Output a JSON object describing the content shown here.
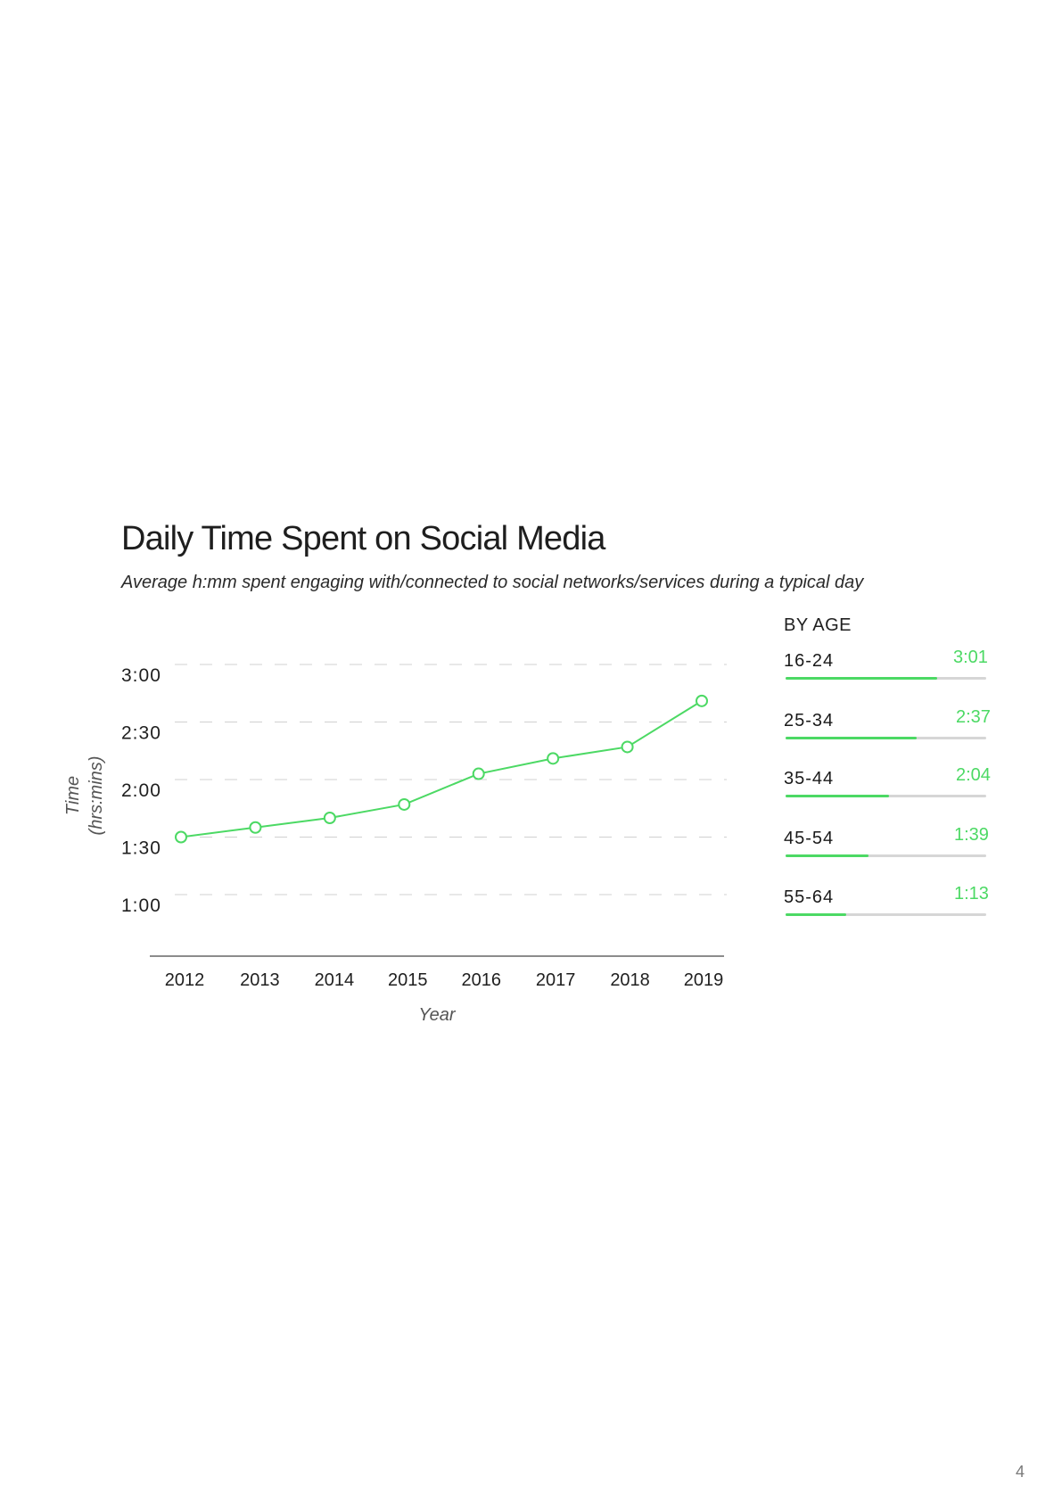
{
  "page": {
    "title": "Daily Time Spent on Social Media",
    "subtitle": "Average h:mm spent engaging with/connected to social networks/services during a typical day",
    "page_number": "4"
  },
  "colors": {
    "accent": "#4cd964",
    "text": "#1f1f1f",
    "grid": "#d0d0d0",
    "axis": "#666666",
    "track": "#d6d6d6"
  },
  "chart_data": [
    {
      "type": "line",
      "xlabel": "Year",
      "ylabel_line1": "Time",
      "ylabel_line2": "(hrs:mins)",
      "x": [
        "2012",
        "2013",
        "2014",
        "2015",
        "2016",
        "2017",
        "2018",
        "2019"
      ],
      "y_minutes": [
        90,
        95,
        100,
        107,
        123,
        131,
        137,
        161
      ],
      "yticks_minutes": [
        60,
        90,
        120,
        150,
        180
      ],
      "ytick_labels": [
        "1:00",
        "1:30",
        "2:00",
        "2:30",
        "3:00"
      ],
      "ylim_minutes": [
        30,
        180
      ],
      "grid": "horizontal dashed",
      "legend": "none"
    },
    {
      "type": "bar",
      "title": "BY AGE",
      "orientation": "horizontal",
      "categories": [
        "16-24",
        "25-34",
        "35-44",
        "45-54",
        "55-64"
      ],
      "value_labels": [
        "3:01",
        "2:37",
        "2:04",
        "1:39",
        "1:13"
      ],
      "values_minutes": [
        181,
        157,
        124,
        99,
        73
      ],
      "max_minutes": 240
    }
  ]
}
